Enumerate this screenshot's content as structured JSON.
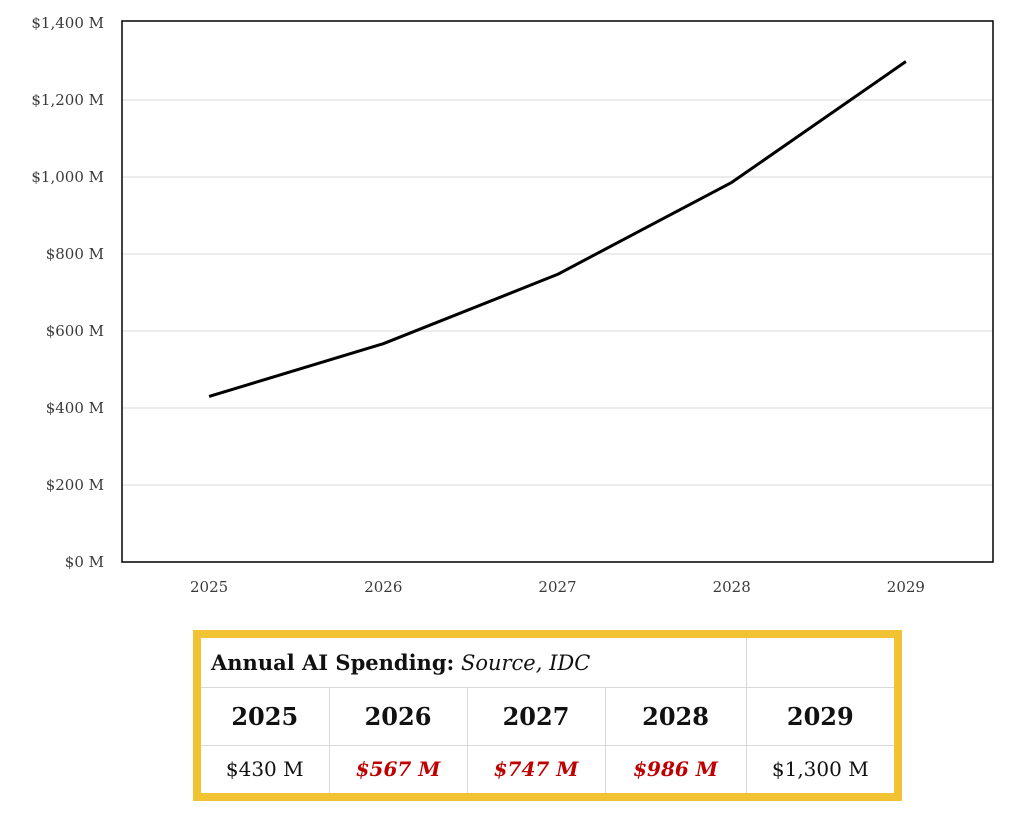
{
  "chart_data": {
    "type": "line",
    "categories": [
      "2025",
      "2026",
      "2027",
      "2028",
      "2029"
    ],
    "series": [
      {
        "values": [
          430,
          567,
          747,
          986,
          1300
        ],
        "color": "#000000"
      }
    ],
    "y_ticks": [
      0,
      200,
      400,
      600,
      800,
      1000,
      1200,
      1400
    ],
    "y_tick_labels": [
      "$0 M",
      "$200 M",
      "$400 M",
      "$600 M",
      "$800 M",
      "$1,000 M",
      "$1,200 M",
      "$1,400 M"
    ],
    "ylim": [
      0,
      1400
    ],
    "grid": true,
    "legend": "none"
  },
  "table": {
    "title": "Annual AI Spending:",
    "source": "Source, IDC",
    "years": [
      "2025",
      "2026",
      "2027",
      "2028",
      "2029"
    ],
    "values": [
      "$430 M",
      "$567 M",
      "$747 M",
      "$986 M",
      "$1,300 M"
    ],
    "highlight_color": "#c00000",
    "border_color": "#f1c232"
  }
}
